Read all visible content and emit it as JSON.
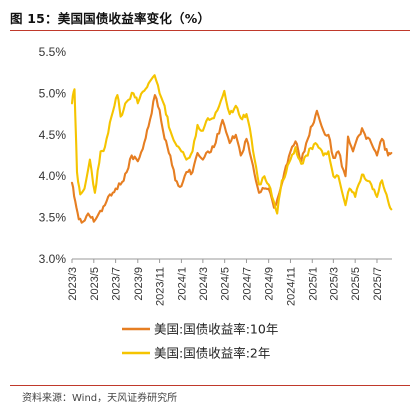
{
  "title": "图 15：美国国债收益率变化（%）",
  "source": "资料来源：Wind，天风证券研究所",
  "chart_data": {
    "type": "line",
    "title": "图 15：美国国债收益率变化（%）",
    "xlabel": "",
    "ylabel": "",
    "ylim": [
      3.0,
      5.5
    ],
    "y_ticks": [
      "3.0%",
      "3.5%",
      "4.0%",
      "4.5%",
      "5.0%",
      "5.5%"
    ],
    "x_ticks": [
      "2023/3",
      "2023/5",
      "2023/7",
      "2023/9",
      "2023/11",
      "2024/1",
      "2024/3",
      "2024/5",
      "2024/7",
      "2024/9",
      "2024/11",
      "2025/1",
      "2025/3",
      "2025/5",
      "2025/7"
    ],
    "legend_position": "bottom",
    "grid": false,
    "series": [
      {
        "name": "美国:国债收益率:10年",
        "color": "#E67E22",
        "points": [
          [
            "2023-03-01",
            3.92
          ],
          [
            "2023-03-10",
            3.7
          ],
          [
            "2023-03-20",
            3.48
          ],
          [
            "2023-04-01",
            3.45
          ],
          [
            "2023-04-15",
            3.55
          ],
          [
            "2023-05-01",
            3.45
          ],
          [
            "2023-05-15",
            3.55
          ],
          [
            "2023-06-01",
            3.65
          ],
          [
            "2023-06-15",
            3.78
          ],
          [
            "2023-07-01",
            3.85
          ],
          [
            "2023-07-15",
            3.9
          ],
          [
            "2023-08-01",
            4.05
          ],
          [
            "2023-08-15",
            4.25
          ],
          [
            "2023-09-01",
            4.18
          ],
          [
            "2023-09-15",
            4.33
          ],
          [
            "2023-10-01",
            4.6
          ],
          [
            "2023-10-19",
            4.98
          ],
          [
            "2023-11-01",
            4.8
          ],
          [
            "2023-11-15",
            4.45
          ],
          [
            "2023-12-01",
            4.25
          ],
          [
            "2023-12-15",
            3.95
          ],
          [
            "2024-01-01",
            3.88
          ],
          [
            "2024-01-15",
            4.05
          ],
          [
            "2024-02-01",
            4.05
          ],
          [
            "2024-02-15",
            4.28
          ],
          [
            "2024-03-01",
            4.2
          ],
          [
            "2024-03-15",
            4.3
          ],
          [
            "2024-04-01",
            4.35
          ],
          [
            "2024-04-25",
            4.68
          ],
          [
            "2024-05-15",
            4.4
          ],
          [
            "2024-06-01",
            4.5
          ],
          [
            "2024-06-15",
            4.25
          ],
          [
            "2024-07-01",
            4.45
          ],
          [
            "2024-07-15",
            4.2
          ],
          [
            "2024-08-05",
            3.8
          ],
          [
            "2024-08-20",
            3.85
          ],
          [
            "2024-09-01",
            3.85
          ],
          [
            "2024-09-16",
            3.62
          ],
          [
            "2024-10-01",
            3.8
          ],
          [
            "2024-10-15",
            4.05
          ],
          [
            "2024-11-01",
            4.3
          ],
          [
            "2024-11-15",
            4.42
          ],
          [
            "2024-12-01",
            4.18
          ],
          [
            "2024-12-15",
            4.4
          ],
          [
            "2025-01-14",
            4.79
          ],
          [
            "2025-02-01",
            4.55
          ],
          [
            "2025-02-15",
            4.5
          ],
          [
            "2025-03-01",
            4.22
          ],
          [
            "2025-03-15",
            4.3
          ],
          [
            "2025-04-04",
            4.0
          ],
          [
            "2025-04-11",
            4.48
          ],
          [
            "2025-04-25",
            4.3
          ],
          [
            "2025-05-20",
            4.58
          ],
          [
            "2025-06-01",
            4.45
          ],
          [
            "2025-06-15",
            4.4
          ],
          [
            "2025-07-01",
            4.25
          ],
          [
            "2025-07-15",
            4.45
          ],
          [
            "2025-08-01",
            4.25
          ],
          [
            "2025-08-10",
            4.28
          ]
        ]
      },
      {
        "name": "美国:国债收益率:2年",
        "color": "#F5C400",
        "points": [
          [
            "2023-03-01",
            4.88
          ],
          [
            "2023-03-08",
            5.05
          ],
          [
            "2023-03-15",
            4.05
          ],
          [
            "2023-03-24",
            3.78
          ],
          [
            "2023-04-05",
            3.85
          ],
          [
            "2023-04-20",
            4.2
          ],
          [
            "2023-05-04",
            3.8
          ],
          [
            "2023-05-20",
            4.3
          ],
          [
            "2023-06-01",
            4.35
          ],
          [
            "2023-06-15",
            4.65
          ],
          [
            "2023-07-06",
            4.98
          ],
          [
            "2023-07-15",
            4.72
          ],
          [
            "2023-08-01",
            4.9
          ],
          [
            "2023-08-20",
            5.0
          ],
          [
            "2023-09-01",
            4.88
          ],
          [
            "2023-09-15",
            5.02
          ],
          [
            "2023-10-01",
            5.12
          ],
          [
            "2023-10-18",
            5.22
          ],
          [
            "2023-11-01",
            5.0
          ],
          [
            "2023-11-15",
            4.85
          ],
          [
            "2023-12-01",
            4.55
          ],
          [
            "2023-12-15",
            4.4
          ],
          [
            "2024-01-01",
            4.3
          ],
          [
            "2024-01-15",
            4.2
          ],
          [
            "2024-02-01",
            4.3
          ],
          [
            "2024-02-15",
            4.62
          ],
          [
            "2024-03-01",
            4.55
          ],
          [
            "2024-03-15",
            4.7
          ],
          [
            "2024-04-01",
            4.7
          ],
          [
            "2024-04-30",
            5.03
          ],
          [
            "2024-05-15",
            4.75
          ],
          [
            "2024-06-01",
            4.85
          ],
          [
            "2024-06-15",
            4.7
          ],
          [
            "2024-07-01",
            4.75
          ],
          [
            "2024-07-15",
            4.45
          ],
          [
            "2024-08-05",
            3.9
          ],
          [
            "2024-08-20",
            4.0
          ],
          [
            "2024-09-01",
            3.9
          ],
          [
            "2024-09-25",
            3.55
          ],
          [
            "2024-10-08",
            3.95
          ],
          [
            "2024-10-20",
            4.05
          ],
          [
            "2024-11-01",
            4.2
          ],
          [
            "2024-11-15",
            4.35
          ],
          [
            "2024-12-01",
            4.15
          ],
          [
            "2024-12-15",
            4.25
          ],
          [
            "2025-01-10",
            4.4
          ],
          [
            "2025-02-01",
            4.25
          ],
          [
            "2025-02-15",
            4.3
          ],
          [
            "2025-03-01",
            4.0
          ],
          [
            "2025-03-15",
            4.0
          ],
          [
            "2025-04-04",
            3.65
          ],
          [
            "2025-04-15",
            3.85
          ],
          [
            "2025-05-01",
            3.75
          ],
          [
            "2025-05-20",
            4.02
          ],
          [
            "2025-06-01",
            3.95
          ],
          [
            "2025-06-15",
            3.9
          ],
          [
            "2025-07-01",
            3.75
          ],
          [
            "2025-07-15",
            3.95
          ],
          [
            "2025-08-01",
            3.7
          ],
          [
            "2025-08-10",
            3.6
          ]
        ]
      }
    ]
  }
}
